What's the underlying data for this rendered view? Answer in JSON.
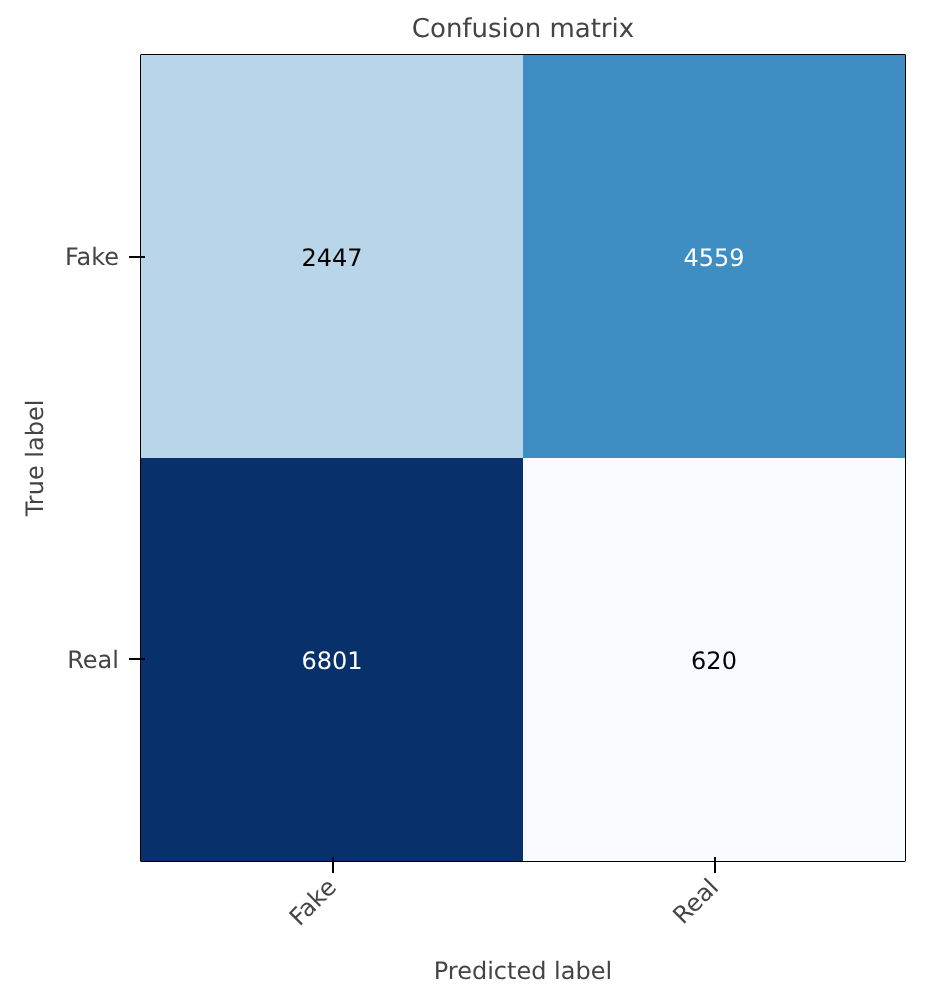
{
  "chart_data": {
    "type": "heatmap",
    "title": "Confusion matrix",
    "xlabel": "Predicted label",
    "ylabel": "True label",
    "categories": [
      "Fake",
      "Real"
    ],
    "y_categories": [
      "Fake",
      "Real"
    ],
    "data_labels": true,
    "cells": [
      [
        2447,
        4559
      ],
      [
        6801,
        620
      ]
    ]
  }
}
